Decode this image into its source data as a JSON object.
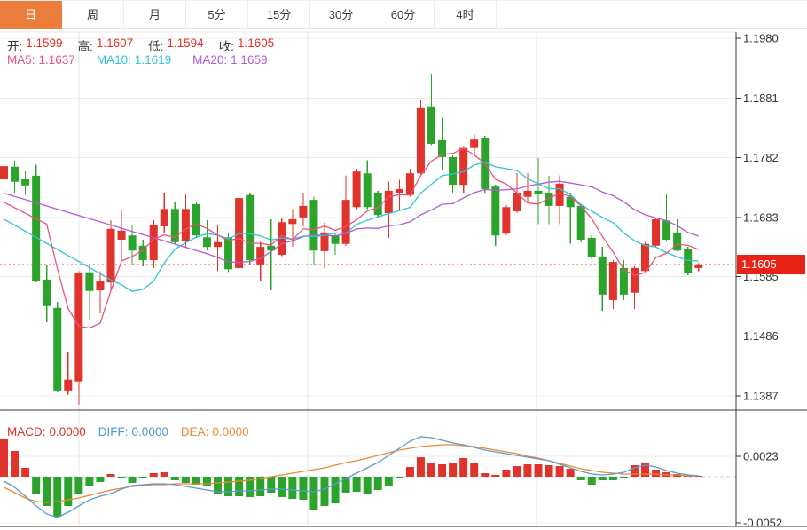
{
  "tabs": {
    "items": [
      {
        "label": "日",
        "active": true
      },
      {
        "label": "周",
        "active": false
      },
      {
        "label": "月",
        "active": false
      },
      {
        "label": "5分",
        "active": false
      },
      {
        "label": "15分",
        "active": false
      },
      {
        "label": "30分",
        "active": false
      },
      {
        "label": "60分",
        "active": false
      },
      {
        "label": "4时",
        "active": false
      }
    ]
  },
  "ohlc": {
    "open_label": "开:",
    "open_value": "1.1599",
    "high_label": "高:",
    "high_value": "1.1607",
    "low_label": "低:",
    "low_value": "1.1594",
    "close_label": "收:",
    "close_value": "1.1605"
  },
  "ma": {
    "ma5_label": "MA5:",
    "ma5_value": "1.1637",
    "ma10_label": "MA10:",
    "ma10_value": "1.1619",
    "ma20_label": "MA20:",
    "ma20_value": "1.1659"
  },
  "macd_header": {
    "macd_label": "MACD:",
    "macd_value": "0.0000",
    "diff_label": "DIFF:",
    "diff_value": "0.0000",
    "dea_label": "DEA:",
    "dea_value": "0.0000"
  },
  "price_axis": {
    "tick_labels": [
      "1.1980",
      "1.1881",
      "1.1782",
      "1.1683",
      "1.1585",
      "1.1486",
      "1.1387"
    ],
    "last_price": "1.1605"
  },
  "macd_axis": {
    "tick_labels": [
      "0.0023",
      "-0.0052"
    ]
  },
  "colors": {
    "up": "#e0332b",
    "down": "#2ca32b",
    "ma5": "#e8547c",
    "ma10": "#2fc3d6",
    "ma20": "#b45ad4",
    "diff": "#5b9bd5",
    "dea": "#ee8833",
    "tab_active_bg": "#ed7d3b",
    "badge_bg": "#e72315",
    "last_price_line": "#ee4433",
    "zero_dash_line": "#b5d9e8",
    "grid": "#ececec",
    "vgrid": "#e6e6e6",
    "panel_border": "#3a3a3a",
    "axis_text": "#333333"
  },
  "chart_data": [
    {
      "type": "candlestick",
      "title": "",
      "ylabel": "price",
      "y_ticks": [
        1.198,
        1.1881,
        1.1782,
        1.1683,
        1.1585,
        1.1486,
        1.1387
      ],
      "ylim": [
        1.1339,
        1.1995
      ],
      "grid": true,
      "last_price": 1.1605,
      "ma_periods": [
        5,
        10,
        20
      ],
      "ma_last": {
        "ma5": 1.1637,
        "ma10": 1.1619,
        "ma20": 1.1659
      },
      "ma_heads": {
        "ma5": 1.1708,
        "ma10": 1.168,
        "ma20": 1.1723
      },
      "candles_format": [
        "open",
        "high",
        "low",
        "close"
      ],
      "candles": [
        [
          1.1746,
          1.1769,
          1.1722,
          1.1768
        ],
        [
          1.1767,
          1.1778,
          1.1724,
          1.1742
        ],
        [
          1.1746,
          1.1759,
          1.172,
          1.1736
        ],
        [
          1.1752,
          1.177,
          1.1575,
          1.1577
        ],
        [
          1.158,
          1.1605,
          1.1509,
          1.1536
        ],
        [
          1.1533,
          1.1543,
          1.1393,
          1.1396
        ],
        [
          1.1396,
          1.1459,
          1.1389,
          1.1414
        ],
        [
          1.1411,
          1.1594,
          1.1372,
          1.159
        ],
        [
          1.1592,
          1.1605,
          1.1514,
          1.1561
        ],
        [
          1.1562,
          1.1594,
          1.1524,
          1.1577
        ],
        [
          1.1575,
          1.1678,
          1.1565,
          1.1664
        ],
        [
          1.1646,
          1.1695,
          1.1609,
          1.1661
        ],
        [
          1.1653,
          1.1671,
          1.1605,
          1.1628
        ],
        [
          1.1636,
          1.1646,
          1.1602,
          1.1612
        ],
        [
          1.1612,
          1.1678,
          1.1599,
          1.1671
        ],
        [
          1.1668,
          1.1724,
          1.1658,
          1.1697
        ],
        [
          1.1697,
          1.1708,
          1.1639,
          1.1642
        ],
        [
          1.1643,
          1.1722,
          1.1634,
          1.1697
        ],
        [
          1.1705,
          1.1709,
          1.1649,
          1.1653
        ],
        [
          1.165,
          1.1678,
          1.1628,
          1.1634
        ],
        [
          1.1634,
          1.1671,
          1.1594,
          1.1642
        ],
        [
          1.165,
          1.1656,
          1.1592,
          1.1597
        ],
        [
          1.1599,
          1.1737,
          1.1575,
          1.1715
        ],
        [
          1.172,
          1.1724,
          1.1605,
          1.1612
        ],
        [
          1.1605,
          1.1642,
          1.1577,
          1.1634
        ],
        [
          1.1636,
          1.168,
          1.1562,
          1.1628
        ],
        [
          1.1621,
          1.1683,
          1.1619,
          1.1675
        ],
        [
          1.1672,
          1.1697,
          1.1634,
          1.168
        ],
        [
          1.1683,
          1.1724,
          1.1668,
          1.1702
        ],
        [
          1.1712,
          1.1717,
          1.1605,
          1.1628
        ],
        [
          1.1627,
          1.1675,
          1.1599,
          1.1658
        ],
        [
          1.1653,
          1.1658,
          1.1621,
          1.1639
        ],
        [
          1.1639,
          1.1753,
          1.1636,
          1.1712
        ],
        [
          1.17,
          1.1764,
          1.1697,
          1.1759
        ],
        [
          1.1756,
          1.1778,
          1.1697,
          1.17
        ],
        [
          1.1724,
          1.1727,
          1.1684,
          1.1687
        ],
        [
          1.169,
          1.1742,
          1.1649,
          1.1727
        ],
        [
          1.1724,
          1.1745,
          1.1695,
          1.173
        ],
        [
          1.172,
          1.1764,
          1.1717,
          1.1756
        ],
        [
          1.1756,
          1.1877,
          1.1753,
          1.1864
        ],
        [
          1.1867,
          1.1921,
          1.1803,
          1.1805
        ],
        [
          1.1811,
          1.1848,
          1.1761,
          1.1783
        ],
        [
          1.1783,
          1.1786,
          1.1724,
          1.1737
        ],
        [
          1.1737,
          1.18,
          1.1724,
          1.1798
        ],
        [
          1.1798,
          1.182,
          1.1786,
          1.1812
        ],
        [
          1.1815,
          1.1818,
          1.1724,
          1.173
        ],
        [
          1.1734,
          1.1737,
          1.1636,
          1.1653
        ],
        [
          1.1656,
          1.1703,
          1.1653,
          1.17
        ],
        [
          1.1693,
          1.1756,
          1.169,
          1.1724
        ],
        [
          1.1717,
          1.1756,
          1.1708,
          1.1727
        ],
        [
          1.1727,
          1.1781,
          1.1672,
          1.1722
        ],
        [
          1.1724,
          1.1752,
          1.1672,
          1.1702
        ],
        [
          1.1702,
          1.1753,
          1.1672,
          1.1739
        ],
        [
          1.1717,
          1.1724,
          1.1639,
          1.17
        ],
        [
          1.1702,
          1.1705,
          1.1642,
          1.1646
        ],
        [
          1.1649,
          1.1653,
          1.1614,
          1.1617
        ],
        [
          1.1617,
          1.1634,
          1.1528,
          1.1555
        ],
        [
          1.1546,
          1.1612,
          1.1531,
          1.1609
        ],
        [
          1.1599,
          1.1612,
          1.1546,
          1.1555
        ],
        [
          1.1558,
          1.1602,
          1.1531,
          1.1599
        ],
        [
          1.1594,
          1.1642,
          1.1592,
          1.1639
        ],
        [
          1.1636,
          1.1683,
          1.1634,
          1.168
        ],
        [
          1.1678,
          1.1722,
          1.1643,
          1.1646
        ],
        [
          1.1658,
          1.168,
          1.1627,
          1.1628
        ],
        [
          1.1631,
          1.1634,
          1.1587,
          1.159
        ],
        [
          1.1599,
          1.1607,
          1.1594,
          1.1605
        ]
      ]
    },
    {
      "type": "macd",
      "y_ticks": [
        0.0023,
        -0.0052
      ],
      "macd_value": 0.0,
      "diff_value": 0.0,
      "dea_value": 0.0,
      "histogram": [
        0.0043,
        0.0029,
        0.001,
        -0.0019,
        -0.0033,
        -0.0045,
        -0.0033,
        -0.0019,
        -0.0011,
        -0.0006,
        0.0003,
        -0.0001,
        -0.0007,
        -0.0001,
        0.0004,
        0.0005,
        -0.0004,
        -0.0007,
        -0.0009,
        -0.0011,
        -0.0019,
        -0.0022,
        -0.0022,
        -0.0023,
        -0.0022,
        -0.0018,
        -0.0023,
        -0.0025,
        -0.0026,
        -0.0037,
        -0.0033,
        -0.003,
        -0.0018,
        -0.0017,
        -0.0019,
        -0.0015,
        -0.001,
        -0.0001,
        0.0011,
        0.0022,
        0.0015,
        0.0014,
        0.0015,
        0.0021,
        0.0015,
        0.0004,
        0.0002,
        0.0008,
        0.0012,
        0.0014,
        0.0014,
        0.0013,
        0.0012,
        0.0009,
        -0.0004,
        -0.0009,
        -0.0004,
        -0.0004,
        -0.0001,
        0.0013,
        0.0015,
        0.0008,
        0.0005,
        0.0003,
        0.0001,
        0.0
      ],
      "diff": [
        -0.0005,
        -0.0012,
        -0.0022,
        -0.0033,
        -0.0042,
        -0.0046,
        -0.004,
        -0.0033,
        -0.0026,
        -0.0022,
        -0.0019,
        -0.0014,
        -0.001,
        -0.0009,
        -0.0008,
        -0.0008,
        -0.0009,
        -0.0011,
        -0.0013,
        -0.0015,
        -0.0017,
        -0.0017,
        -0.0016,
        -0.0016,
        -0.0015,
        -0.0014,
        -0.0014,
        -0.0015,
        -0.0016,
        -0.0017,
        -0.0014,
        -0.0008,
        -0.0002,
        0.0004,
        0.001,
        0.0016,
        0.0024,
        0.0032,
        0.004,
        0.0045,
        0.0044,
        0.0041,
        0.0038,
        0.0036,
        0.0033,
        0.003,
        0.0028,
        0.0026,
        0.0024,
        0.0022,
        0.002,
        0.0018,
        0.0014,
        0.001,
        0.0006,
        0.0003,
        0.0002,
        0.0003,
        0.0005,
        0.001,
        0.0013,
        0.0011,
        0.0007,
        0.0004,
        0.0002,
        0.0001
      ],
      "dea": [
        -0.0012,
        -0.0018,
        -0.0024,
        -0.0028,
        -0.0029,
        -0.0028,
        -0.0026,
        -0.0024,
        -0.0021,
        -0.0018,
        -0.0015,
        -0.0013,
        -0.0011,
        -0.001,
        -0.0009,
        -0.0009,
        -0.0008,
        -0.0008,
        -0.0008,
        -0.0008,
        -0.0007,
        -0.0006,
        -0.0005,
        -0.0004,
        -0.0002,
        0.0,
        0.0002,
        0.0004,
        0.0006,
        0.0008,
        0.001,
        0.0013,
        0.0016,
        0.0018,
        0.0021,
        0.0024,
        0.0027,
        0.003,
        0.0032,
        0.0034,
        0.0035,
        0.0036,
        0.0036,
        0.0035,
        0.0034,
        0.0032,
        0.003,
        0.0028,
        0.0026,
        0.0023,
        0.0021,
        0.0018,
        0.0015,
        0.0012,
        0.0009,
        0.0007,
        0.0005,
        0.0004,
        0.0003,
        0.0003,
        0.0003,
        0.0003,
        0.0002,
        0.0002,
        0.0001,
        0.0001
      ]
    }
  ]
}
